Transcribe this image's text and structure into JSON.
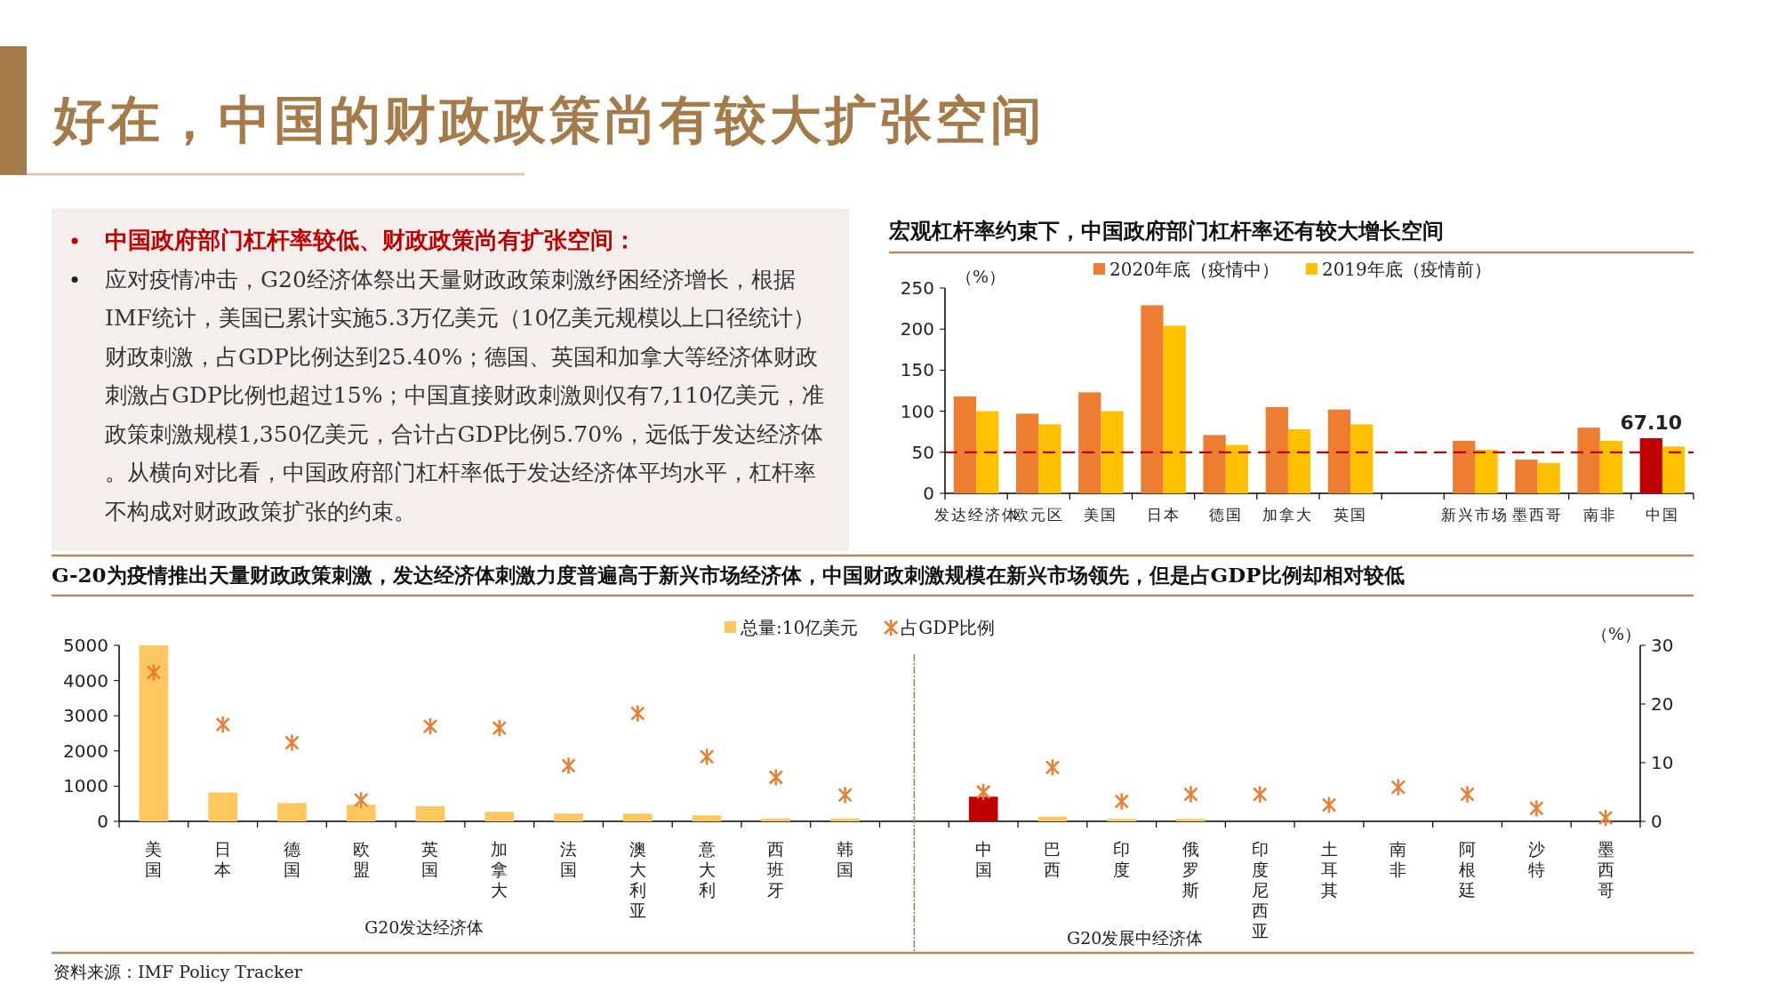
{
  "chart_data": [
    {
      "type": "other",
      "title": "好在，中国的财政政策尚有较大扩张空间",
      "annotations": [
        "中国政府部门杠杆率较低、财政政策尚有扩张空间：",
        "应对疫情冲击，G20经济体祭出天量财政政策刺激纾困经济增长，根据IMF统计，美国已累计实施5.3万亿美元（10亿美元规模以上口径统计）财政刺激，占GDP比例达到25.40%；德国、英国和加拿大等经济体财政刺激占GDP比例也超过15%；中国直接财政刺激则仅有7,110亿美元，准政策刺激规模1,350亿美元，合计占GDP比例5.70%，远低于发达经济体。从横向对比看，中国政府部门杠杆率低于发达经济体平均水平，杠杆率不构成对财政政策扩张的约束。"
      ]
    },
    {
      "type": "bar",
      "title": "宏观杠杆率约束下，中国政府部门杠杆率还有较大增长空间",
      "ylabel": "（%）",
      "categories": [
        "发达经济体",
        "欧元区",
        "美国",
        "日本",
        "德国",
        "加拿大",
        "英国",
        null,
        "新兴市场",
        "墨西哥",
        "南非",
        "中国"
      ],
      "series": [
        {
          "name": "2020年底（疫情中）",
          "color": "#ed7d31",
          "colors": [
            "#ed7d31",
            "#ed7d31",
            "#ed7d31",
            "#ed7d31",
            "#ed7d31",
            "#ed7d31",
            "#ed7d31",
            null,
            "#ed7d31",
            "#ed7d31",
            "#ed7d31",
            "#c00000"
          ],
          "values": [
            118,
            97,
            123,
            229,
            71,
            105,
            102,
            null,
            64,
            41,
            80,
            67.1
          ],
          "value_labels": [
            null,
            null,
            null,
            null,
            null,
            null,
            null,
            null,
            null,
            null,
            null,
            "67.10"
          ]
        },
        {
          "name": "2019年底（疫情前）",
          "color": "#ffc000",
          "values": [
            100,
            84,
            100,
            204,
            59,
            78,
            84,
            null,
            53,
            37,
            64,
            57
          ]
        }
      ],
      "ylim": [
        0,
        250
      ],
      "yticks": [
        0,
        50,
        100,
        150,
        200,
        250
      ],
      "ref_lines": [
        {
          "axis": "y",
          "value": 50,
          "color": "#c00000",
          "line_style": "dashed"
        }
      ],
      "legend": "top"
    },
    {
      "type": "bar",
      "title": "G-20为疫情推出天量财政政策刺激，发达经济体刺激力度普遍高于新兴市场经济体，中国财政刺激规模在新兴市场领先，但是占GDP比例却相对较低",
      "y2label": "（%）",
      "categories": [
        "美国",
        "日本",
        "德国",
        "欧盟",
        "英国",
        "加拿大",
        "法国",
        "澳大利亚",
        "意大利",
        "西班牙",
        "韩国",
        null,
        "中国",
        "巴西",
        "印度",
        "俄罗斯",
        "印度尼西亚",
        "土耳其",
        "南非",
        "阿根廷",
        "沙特",
        "墨西哥"
      ],
      "series": [
        {
          "name": "总量:10亿美元",
          "color": "#ffc75f",
          "colors": [
            "#ffc75f",
            "#ffc75f",
            "#ffc75f",
            "#ffc75f",
            "#ffc75f",
            "#ffc75f",
            "#ffc75f",
            "#ffc75f",
            "#ffc75f",
            "#ffc75f",
            "#ffc75f",
            null,
            "#c00000",
            "#ffc75f",
            "#ffc75f",
            "#ffc75f",
            "#ffc75f",
            "#ffc75f",
            "#ffc75f",
            "#ffc75f",
            "#ffc75f",
            "#ffc75f"
          ],
          "values": [
            5000,
            820,
            520,
            470,
            430,
            270,
            220,
            220,
            170,
            80,
            80,
            null,
            700,
            130,
            70,
            70,
            0,
            0,
            0,
            0,
            0,
            0
          ]
        },
        {
          "name": "占GDP比例",
          "type": "scatter",
          "axis": "y2",
          "marker": "cross",
          "color": "#ed7d31",
          "values": [
            25.4,
            16.5,
            13.4,
            3.6,
            16.2,
            15.9,
            9.5,
            18.4,
            11.0,
            7.5,
            4.5,
            null,
            5.0,
            9.2,
            3.4,
            4.6,
            4.6,
            2.8,
            5.8,
            4.6,
            2.2,
            0.6
          ]
        }
      ],
      "ylim": [
        0,
        5000
      ],
      "yticks": [
        0,
        1000,
        2000,
        3000,
        4000,
        5000
      ],
      "y2lim": [
        0,
        30
      ],
      "y2ticks": [
        0,
        10,
        20,
        30
      ],
      "legend": "top",
      "annotations": [
        "G20发达经济体",
        "G20发展中经济体",
        "资料来源：IMF Policy Tracker"
      ]
    }
  ]
}
